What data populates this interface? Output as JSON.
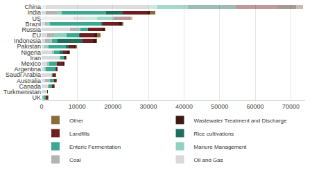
{
  "chart_data": {
    "type": "bar",
    "orientation": "horizontal",
    "stacked": true,
    "grid": true,
    "legend": "bottom",
    "categories": [
      "China",
      "India",
      "US",
      "Brazil",
      "Russia",
      "EU",
      "Indonesia",
      "Pakistan",
      "Nigeria",
      "Iran",
      "Mexico",
      "Argentina",
      "Saudi Arabia",
      "Australia",
      "Canada",
      "Turkmenistan",
      "UK"
    ],
    "xlim": [
      0,
      74000
    ],
    "xticks": [
      0,
      10000,
      20000,
      30000,
      40000,
      50000,
      60000,
      70000
    ],
    "series": [
      {
        "name": "Oil and Gas",
        "color": "#d9d9d9",
        "values": [
          1200,
          1200,
          9000,
          1000,
          8000,
          1500,
          1000,
          800,
          3000,
          5000,
          1500,
          800,
          2800,
          900,
          1700,
          1500,
          200
        ]
      },
      {
        "name": "Coal",
        "color": "#b3b3b3",
        "values": [
          28800,
          3000,
          3000,
          300,
          2500,
          2000,
          1500,
          100,
          0,
          0,
          300,
          0,
          0,
          1300,
          100,
          0,
          100
        ]
      },
      {
        "name": "Manure Management",
        "color": "#8fd1bf",
        "values": [
          2500,
          1500,
          3500,
          1000,
          500,
          3500,
          400,
          1000,
          500,
          300,
          400,
          300,
          100,
          100,
          200,
          0,
          200
        ]
      },
      {
        "name": "Enteric Fermentation",
        "color": "#3aa98f",
        "values": [
          8500,
          12500,
          4500,
          14500,
          2000,
          3500,
          1500,
          5000,
          1500,
          1000,
          2000,
          2800,
          300,
          1300,
          900,
          150,
          600
        ]
      },
      {
        "name": "Rice cultivations",
        "color": "#1f6f5c",
        "values": [
          13500,
          4500,
          500,
          300,
          100,
          300,
          7000,
          700,
          1000,
          100,
          0,
          100,
          0,
          0,
          0,
          0,
          0
        ]
      },
      {
        "name": "Landfills",
        "color": "#6e1e1e",
        "values": [
          12000,
          7000,
          4000,
          4500,
          4000,
          4000,
          3000,
          1500,
          1200,
          400,
          1800,
          400,
          600,
          400,
          600,
          30,
          600
        ]
      },
      {
        "name": "Wastewater Treatment and Discharge",
        "color": "#3d1a12",
        "values": [
          5000,
          600,
          500,
          1000,
          600,
          800,
          900,
          500,
          500,
          100,
          400,
          50,
          150,
          100,
          100,
          20,
          100
        ]
      },
      {
        "name": "Other",
        "color": "#8b6b3d",
        "values": [
          2000,
          1700,
          500,
          400,
          300,
          900,
          200,
          400,
          300,
          100,
          100,
          50,
          50,
          100,
          100,
          0,
          100
        ]
      }
    ]
  }
}
